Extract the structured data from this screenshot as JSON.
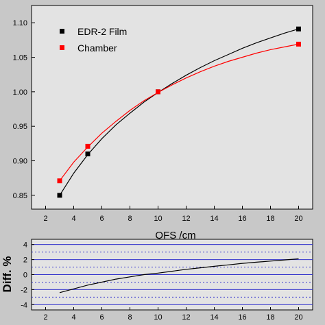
{
  "chart_data": [
    {
      "type": "line",
      "xlim": [
        1,
        21
      ],
      "ylim": [
        0.83,
        1.125
      ],
      "x_ticks": [
        2,
        4,
        6,
        8,
        10,
        12,
        14,
        16,
        18,
        20
      ],
      "y_ticks": [
        0.85,
        0.9,
        0.95,
        1.0,
        1.05,
        1.1
      ],
      "y_tick_labels": [
        "0.85",
        "0.90",
        "0.95",
        "1.00",
        "1.05",
        "1.10"
      ],
      "grid": false,
      "legend_placement": "top-left",
      "series": [
        {
          "name": "EDR-2 Film",
          "color": "#000000",
          "marker": "square",
          "x": [
            3,
            5,
            10,
            20
          ],
          "y": [
            0.85,
            0.91,
            1.0,
            1.091
          ],
          "fit_curve": {
            "x": [
              3,
              4,
              5,
              6,
              7,
              8,
              9,
              10,
              11,
              12,
              13,
              14,
              15,
              16,
              17,
              18,
              19,
              20
            ],
            "y": [
              0.85,
              0.882,
              0.909,
              0.932,
              0.952,
              0.969,
              0.985,
              0.999,
              1.012,
              1.024,
              1.035,
              1.045,
              1.054,
              1.063,
              1.071,
              1.078,
              1.085,
              1.091
            ]
          }
        },
        {
          "name": "Chamber",
          "color": "#ff0000",
          "marker": "square",
          "x": [
            3,
            5,
            10,
            20
          ],
          "y": [
            0.871,
            0.921,
            1.0,
            1.069
          ],
          "fit_curve": {
            "x": [
              3,
              4,
              5,
              6,
              7,
              8,
              9,
              10,
              11,
              12,
              13,
              14,
              15,
              16,
              17,
              18,
              19,
              20
            ],
            "y": [
              0.871,
              0.898,
              0.92,
              0.94,
              0.957,
              0.973,
              0.987,
              0.999,
              1.01,
              1.02,
              1.029,
              1.037,
              1.044,
              1.05,
              1.056,
              1.061,
              1.065,
              1.069
            ]
          }
        }
      ]
    },
    {
      "type": "line",
      "xlabel": "QFS  /cm",
      "ylabel": "Diff. %",
      "xlim": [
        1,
        21
      ],
      "ylim": [
        -4.7,
        4.7
      ],
      "x_ticks": [
        2,
        4,
        6,
        8,
        10,
        12,
        14,
        16,
        18,
        20
      ],
      "y_ticks": [
        -4,
        -2,
        0,
        2,
        4
      ],
      "grid": false,
      "reference_lines": {
        "solid": [
          -4,
          -2,
          0,
          2,
          4
        ],
        "dashed": [
          -3,
          -1,
          1,
          3
        ],
        "color": "#3333cc"
      },
      "series": [
        {
          "color": "#000000",
          "x": [
            3,
            4,
            5,
            6,
            7,
            8,
            9,
            10,
            11,
            12,
            13,
            14,
            15,
            16,
            17,
            18,
            19,
            20
          ],
          "y": [
            -2.4,
            -1.9,
            -1.4,
            -1.0,
            -0.6,
            -0.3,
            0.0,
            0.2,
            0.45,
            0.7,
            0.9,
            1.1,
            1.3,
            1.5,
            1.65,
            1.8,
            1.95,
            2.1
          ]
        }
      ]
    }
  ]
}
